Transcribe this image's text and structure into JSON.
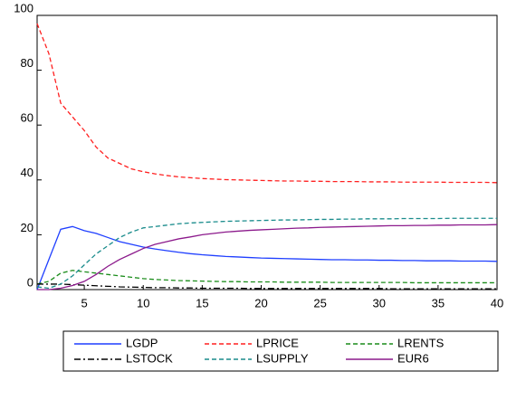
{
  "chart_data": {
    "type": "line",
    "x": [
      1,
      2,
      3,
      4,
      5,
      6,
      7,
      8,
      9,
      10,
      11,
      12,
      13,
      14,
      15,
      16,
      17,
      18,
      19,
      20,
      21,
      22,
      23,
      24,
      25,
      26,
      27,
      28,
      29,
      30,
      31,
      32,
      33,
      34,
      35,
      36,
      37,
      38,
      39,
      40
    ],
    "series": [
      {
        "name": "LGDP",
        "color": "#1f3fff",
        "dash": "solid",
        "values": [
          0,
          11,
          22,
          23,
          21.5,
          20.5,
          19,
          17.5,
          16.5,
          15.5,
          14.8,
          14.2,
          13.6,
          13.1,
          12.7,
          12.4,
          12.1,
          11.9,
          11.7,
          11.5,
          11.4,
          11.3,
          11.2,
          11.1,
          11,
          10.9,
          10.9,
          10.8,
          10.8,
          10.7,
          10.7,
          10.6,
          10.6,
          10.5,
          10.5,
          10.5,
          10.4,
          10.4,
          10.4,
          10.3
        ]
      },
      {
        "name": "LPRICE",
        "color": "#ff2020",
        "dash": "dashed",
        "values": [
          97,
          86,
          68,
          63,
          58,
          52,
          48,
          46,
          44,
          43,
          42.2,
          41.6,
          41.1,
          40.8,
          40.5,
          40.3,
          40.1,
          40,
          39.9,
          39.8,
          39.7,
          39.6,
          39.6,
          39.5,
          39.5,
          39.4,
          39.4,
          39.4,
          39.3,
          39.3,
          39.3,
          39.2,
          39.2,
          39.2,
          39.2,
          39.1,
          39.1,
          39.1,
          39.1,
          39
        ]
      },
      {
        "name": "LRENTS",
        "color": "#1a8c1a",
        "dash": "dashed",
        "values": [
          2,
          3,
          6,
          7,
          6.5,
          6,
          5.5,
          5,
          4.5,
          4,
          3.7,
          3.5,
          3.3,
          3.2,
          3.1,
          3,
          2.9,
          2.9,
          2.8,
          2.8,
          2.8,
          2.7,
          2.7,
          2.7,
          2.7,
          2.6,
          2.6,
          2.6,
          2.6,
          2.6,
          2.6,
          2.6,
          2.5,
          2.5,
          2.5,
          2.5,
          2.5,
          2.5,
          2.5,
          2.5
        ]
      },
      {
        "name": "LSTOCK",
        "color": "#000000",
        "dash": "dashdot",
        "values": [
          2,
          2,
          2,
          1.8,
          1.6,
          1.4,
          1.2,
          1,
          0.9,
          0.8,
          0.7,
          0.7,
          0.6,
          0.6,
          0.5,
          0.5,
          0.5,
          0.5,
          0.4,
          0.4,
          0.4,
          0.4,
          0.4,
          0.4,
          0.4,
          0.4,
          0.4,
          0.4,
          0.4,
          0.4,
          0.3,
          0.3,
          0.3,
          0.3,
          0.3,
          0.3,
          0.3,
          0.3,
          0.3,
          0.3
        ]
      },
      {
        "name": "LSUPPLY",
        "color": "#1a8c8c",
        "dash": "dashed",
        "values": [
          1,
          0.5,
          2,
          5,
          9,
          13,
          16,
          19,
          21,
          22.5,
          23,
          23.5,
          24,
          24.3,
          24.5,
          24.7,
          24.9,
          25,
          25.1,
          25.2,
          25.3,
          25.4,
          25.4,
          25.5,
          25.6,
          25.6,
          25.7,
          25.7,
          25.8,
          25.8,
          25.8,
          25.9,
          25.9,
          25.9,
          25.9,
          26,
          26,
          26,
          26,
          26
        ]
      },
      {
        "name": "EUR6",
        "color": "#8c1a8c",
        "dash": "solid",
        "values": [
          0,
          0,
          0.5,
          1.5,
          3,
          5.5,
          8.5,
          11,
          13,
          15,
          16.5,
          17.5,
          18.5,
          19.2,
          20,
          20.5,
          21,
          21.3,
          21.6,
          21.8,
          22,
          22.2,
          22.4,
          22.5,
          22.7,
          22.8,
          22.9,
          23,
          23.1,
          23.2,
          23.3,
          23.3,
          23.4,
          23.4,
          23.5,
          23.5,
          23.6,
          23.6,
          23.6,
          23.7
        ]
      }
    ],
    "xlim": [
      1,
      40
    ],
    "xticks": [
      5,
      10,
      15,
      20,
      25,
      30,
      35,
      40
    ],
    "ylim": [
      0,
      100
    ],
    "yticks": [
      0,
      20,
      40,
      60,
      80,
      100
    ]
  }
}
